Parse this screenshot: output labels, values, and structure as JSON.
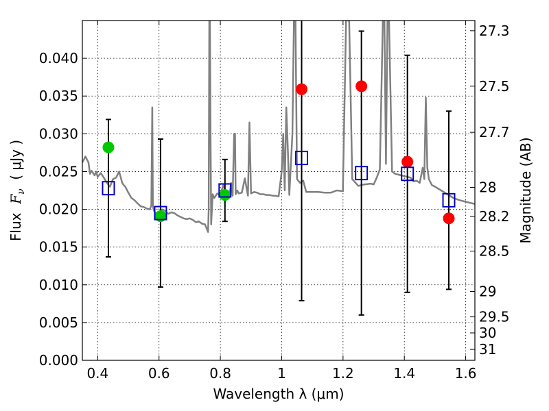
{
  "chart_data": {
    "type": "scatter",
    "xlabel": "Wavelength  λ (μm)",
    "ylabel_parts": [
      "Flux  ",
      "F",
      "ν",
      "  ( μJy )"
    ],
    "y2label": "Magnitude (AB)",
    "xlim": [
      0.35,
      1.63
    ],
    "ylim": [
      0.0,
      0.045
    ],
    "grid": true,
    "x_ticks": [
      0.4,
      0.6,
      0.8,
      1.0,
      1.2,
      1.4,
      1.6
    ],
    "x_tick_labels": [
      "0.4",
      "0.6",
      "0.8",
      "1",
      "1.2",
      "1.4",
      "1.6"
    ],
    "y_ticks": [
      0.0,
      0.005,
      0.01,
      0.015,
      0.02,
      0.025,
      0.03,
      0.035,
      0.04
    ],
    "y_tick_labels": [
      "0.000",
      "0.005",
      "0.010",
      "0.015",
      "0.020",
      "0.025",
      "0.030",
      "0.035",
      "0.040"
    ],
    "y2_ticks": [
      {
        "value": 27.3,
        "label": "27.3"
      },
      {
        "value": 27.5,
        "label": "27.5"
      },
      {
        "value": 27.7,
        "label": "27.7"
      },
      {
        "value": 28.0,
        "label": "28"
      },
      {
        "value": 28.2,
        "label": "28.2"
      },
      {
        "value": 28.5,
        "label": "28.5"
      },
      {
        "value": 29.0,
        "label": "29"
      },
      {
        "value": 29.5,
        "label": "29.5"
      },
      {
        "value": 30.0,
        "label": "30"
      },
      {
        "value": 31.0,
        "label": "31"
      }
    ],
    "series": [
      {
        "kind": "spectrum",
        "color": "#808080",
        "x": [
          0.35,
          0.36,
          0.37,
          0.375,
          0.38,
          0.39,
          0.395,
          0.4,
          0.41,
          0.42,
          0.43,
          0.44,
          0.45,
          0.46,
          0.47,
          0.48,
          0.485,
          0.49,
          0.5,
          0.51,
          0.52,
          0.53,
          0.54,
          0.55,
          0.56,
          0.57,
          0.575,
          0.578,
          0.58,
          0.582,
          0.585,
          0.59,
          0.6,
          0.61,
          0.62,
          0.63,
          0.64,
          0.65,
          0.66,
          0.67,
          0.68,
          0.69,
          0.7,
          0.71,
          0.72,
          0.73,
          0.74,
          0.75,
          0.755,
          0.76,
          0.762,
          0.764,
          0.766,
          0.768,
          0.77,
          0.775,
          0.78,
          0.79,
          0.8,
          0.81,
          0.82,
          0.83,
          0.835,
          0.84,
          0.845,
          0.848,
          0.85,
          0.855,
          0.86,
          0.87,
          0.88,
          0.89,
          0.895,
          0.9,
          0.91,
          0.92,
          0.93,
          0.94,
          0.95,
          0.96,
          0.97,
          0.98,
          0.99,
          1.0,
          1.005,
          1.01,
          1.015,
          1.02,
          1.025,
          1.03,
          1.035,
          1.04,
          1.045,
          1.05,
          1.06,
          1.07,
          1.08,
          1.1,
          1.12,
          1.14,
          1.16,
          1.18,
          1.2,
          1.2,
          1.21,
          1.22,
          1.23,
          1.25,
          1.27,
          1.29,
          1.3,
          1.31,
          1.32,
          1.33,
          1.335,
          1.34,
          1.345,
          1.35,
          1.36,
          1.37,
          1.38,
          1.39,
          1.4,
          1.41,
          1.42,
          1.43,
          1.44,
          1.45,
          1.46,
          1.465,
          1.47,
          1.475,
          1.48,
          1.49,
          1.5,
          1.52,
          1.54,
          1.56,
          1.58,
          1.6,
          1.63
        ],
        "y": [
          0.0262,
          0.027,
          0.0262,
          0.0247,
          0.0251,
          0.0245,
          0.025,
          0.0243,
          0.0248,
          0.0242,
          0.0235,
          0.023,
          0.024,
          0.0242,
          0.025,
          0.0235,
          0.0232,
          0.023,
          0.0222,
          0.0215,
          0.0212,
          0.0208,
          0.0204,
          0.0203,
          0.0201,
          0.02,
          0.0205,
          0.0335,
          0.0205,
          0.02,
          0.0197,
          0.0195,
          0.0196,
          0.02,
          0.0198,
          0.0194,
          0.0196,
          0.0195,
          0.0192,
          0.019,
          0.0188,
          0.0187,
          0.0188,
          0.0186,
          0.0183,
          0.0184,
          0.0181,
          0.018,
          0.0175,
          0.017,
          0.02,
          0.045,
          0.045,
          0.03,
          0.018,
          0.022,
          0.0215,
          0.0221,
          0.0219,
          0.0233,
          0.0216,
          0.0218,
          0.0235,
          0.0218,
          0.03,
          0.03,
          0.022,
          0.0225,
          0.0221,
          0.0222,
          0.0241,
          0.0218,
          0.0315,
          0.0221,
          0.0223,
          0.0222,
          0.022,
          0.022,
          0.0219,
          0.0219,
          0.0218,
          0.0218,
          0.0217,
          0.025,
          0.03,
          0.0225,
          0.0335,
          0.028,
          0.0219,
          0.026,
          0.03,
          0.045,
          0.045,
          0.024,
          0.0235,
          0.0238,
          0.0223,
          0.0223,
          0.0223,
          0.0222,
          0.0222,
          0.0225,
          0.0224,
          0.0232,
          0.045,
          0.045,
          0.024,
          0.0231,
          0.0233,
          0.0234,
          0.0233,
          0.0242,
          0.0253,
          0.045,
          0.045,
          0.026,
          0.045,
          0.045,
          0.025,
          0.0247,
          0.0246,
          0.0245,
          0.0244,
          0.0243,
          0.0242,
          0.0237,
          0.0238,
          0.0235,
          0.0255,
          0.024,
          0.0348,
          0.0255,
          0.024,
          0.0232,
          0.023,
          0.0225,
          0.022,
          0.0215,
          0.0212,
          0.021,
          0.0207
        ]
      },
      {
        "kind": "model-squares",
        "color": "#0000cc",
        "x": [
          0.435,
          0.605,
          0.815,
          1.065,
          1.26,
          1.41,
          1.545
        ],
        "y": [
          0.0228,
          0.0195,
          0.0225,
          0.0268,
          0.0248,
          0.0247,
          0.0212
        ],
        "err": [
          0.0091,
          0.0098,
          0.0041,
          0.0189,
          0.0188,
          0.0157,
          0.0118
        ]
      },
      {
        "kind": "green-points",
        "color": "#00c800",
        "x": [
          0.435,
          0.605,
          0.815
        ],
        "y": [
          0.0282,
          0.0191,
          0.0219
        ]
      },
      {
        "kind": "red-points",
        "color": "#ff0000",
        "x": [
          1.065,
          1.26,
          1.41,
          1.545
        ],
        "y": [
          0.0359,
          0.0363,
          0.0263,
          0.0188
        ]
      }
    ]
  }
}
